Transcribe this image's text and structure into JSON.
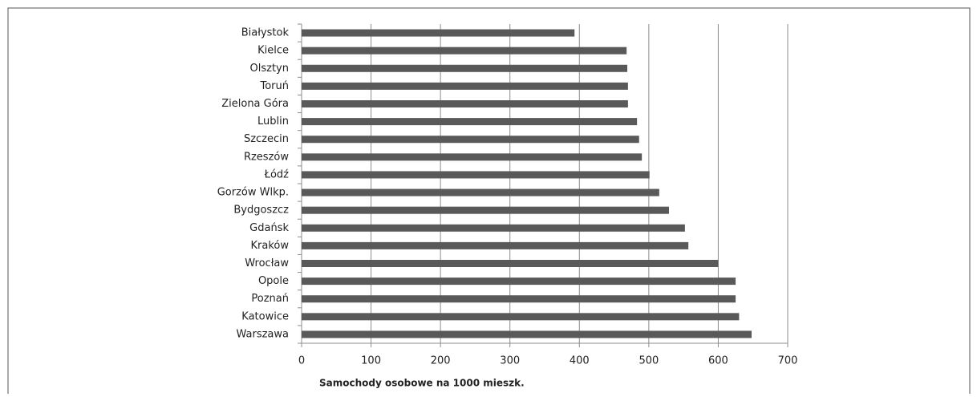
{
  "chart_data": {
    "type": "bar",
    "orientation": "horizontal",
    "categories": [
      "Białystok",
      "Kielce",
      "Olsztyn",
      "Toruń",
      "Zielona Góra",
      "Lublin",
      "Szczecin",
      "Rzeszów",
      "Łódź",
      "Gorzów Wlkp.",
      "Bydgoszcz",
      "Gdańsk",
      "Kraków",
      "Wrocław",
      "Opole",
      "Poznań",
      "Katowice",
      "Warszawa"
    ],
    "values": [
      393,
      468,
      469,
      470,
      470,
      483,
      486,
      490,
      501,
      515,
      529,
      552,
      557,
      600,
      625,
      625,
      630,
      648
    ],
    "color": "#595959",
    "xlabel": "Samochody osobowe na 1000 mieszk.",
    "xlim": [
      0,
      700
    ],
    "xticks": [
      0,
      100,
      200,
      300,
      400,
      500,
      600,
      700
    ],
    "grid": true
  }
}
